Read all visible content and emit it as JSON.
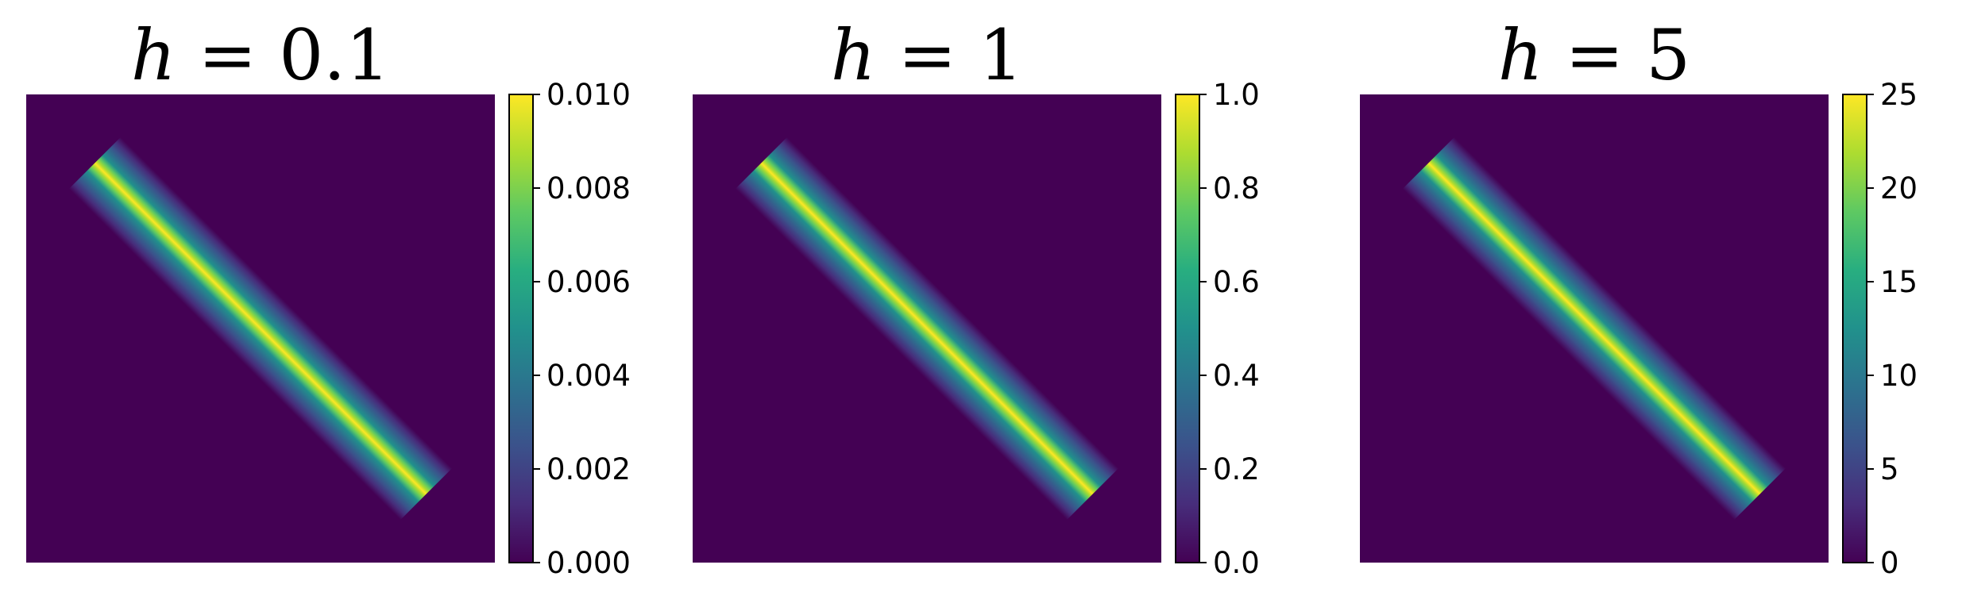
{
  "chart_data": [
    {
      "type": "heatmap",
      "title": {
        "var": "h",
        "rest": " = 0.1"
      },
      "colorbar": {
        "min": 0,
        "max": 0.01,
        "ticks": [
          "0.000",
          "0.002",
          "0.004",
          "0.006",
          "0.008",
          "0.010"
        ],
        "tick_values": [
          0,
          0.002,
          0.004,
          0.006,
          0.008,
          0.01
        ]
      },
      "peak_value": 0.01,
      "pattern": "diagonal band (top-left to bottom-right)",
      "colormap": "viridis",
      "axes": "off"
    },
    {
      "type": "heatmap",
      "title": {
        "var": "h",
        "rest": " = 1"
      },
      "colorbar": {
        "min": 0,
        "max": 1.0,
        "ticks": [
          "0.0",
          "0.2",
          "0.4",
          "0.6",
          "0.8",
          "1.0"
        ],
        "tick_values": [
          0,
          0.2,
          0.4,
          0.6,
          0.8,
          1.0
        ]
      },
      "peak_value": 1.0,
      "pattern": "diagonal band (top-left to bottom-right)",
      "colormap": "viridis",
      "axes": "off"
    },
    {
      "type": "heatmap",
      "title": {
        "var": "h",
        "rest": " = 5"
      },
      "colorbar": {
        "min": 0,
        "max": 25,
        "ticks": [
          "0",
          "5",
          "10",
          "15",
          "20",
          "25"
        ],
        "tick_values": [
          0,
          5,
          10,
          15,
          20,
          25
        ]
      },
      "peak_value": 25,
      "pattern": "diagonal band (top-left to bottom-right)",
      "colormap": "viridis",
      "axes": "off"
    }
  ],
  "colors": {
    "viridis_low": "#440154",
    "viridis_mid": "#21918c",
    "viridis_high": "#fde725"
  }
}
